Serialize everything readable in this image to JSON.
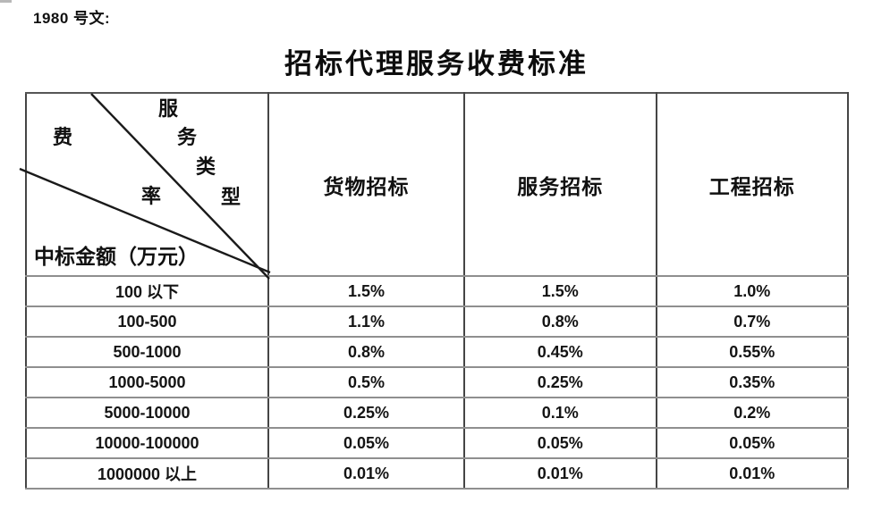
{
  "doc_label": "1980 号文:",
  "title": "招标代理服务收费标准",
  "table": {
    "corner": {
      "service_type_chars": [
        "服",
        "务",
        "类",
        "型"
      ],
      "rate_chars": [
        "费",
        "率"
      ],
      "amount_label": "中标金额（万元）"
    },
    "columns": [
      "货物招标",
      "服务招标",
      "工程招标"
    ],
    "rows": [
      {
        "label": "100 以下",
        "values": [
          "1.5%",
          "1.5%",
          "1.0%"
        ]
      },
      {
        "label": "100-500",
        "values": [
          "1.1%",
          "0.8%",
          "0.7%"
        ]
      },
      {
        "label": "500-1000",
        "values": [
          "0.8%",
          "0.45%",
          "0.55%"
        ]
      },
      {
        "label": "1000-5000",
        "values": [
          "0.5%",
          "0.25%",
          "0.35%"
        ]
      },
      {
        "label": "5000-10000",
        "values": [
          "0.25%",
          "0.1%",
          "0.2%"
        ]
      },
      {
        "label": "10000-100000",
        "values": [
          "0.05%",
          "0.05%",
          "0.05%"
        ]
      },
      {
        "label": "1000000 以上",
        "values": [
          "0.01%",
          "0.01%",
          "0.01%"
        ]
      }
    ]
  },
  "colors": {
    "text": "#111111",
    "diagonal_line": "#1a1a1a",
    "border_dark": "#454545",
    "border_light": "#8f8f8f"
  }
}
